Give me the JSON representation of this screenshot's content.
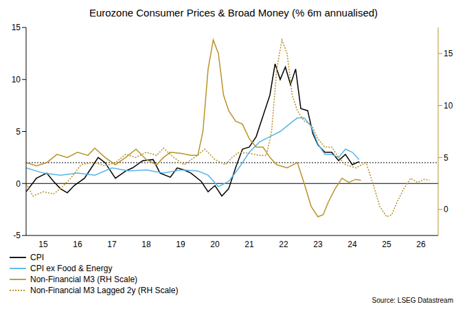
{
  "chart_data": {
    "type": "line",
    "title": "Eurozone Consumer Prices & Broad Money (% 6m annualised)",
    "source": "Source: LSEG Datastream",
    "legend": "bottom-left",
    "grid": false,
    "xlim": [
      2015,
      2027
    ],
    "xticks": [
      {
        "value": 2015.5,
        "label": "15"
      },
      {
        "value": 2016.5,
        "label": "16"
      },
      {
        "value": 2017.5,
        "label": "17"
      },
      {
        "value": 2018.5,
        "label": "18"
      },
      {
        "value": 2019.5,
        "label": "19"
      },
      {
        "value": 2020.5,
        "label": "20"
      },
      {
        "value": 2021.5,
        "label": "21"
      },
      {
        "value": 2022.5,
        "label": "22"
      },
      {
        "value": 2023.5,
        "label": "23"
      },
      {
        "value": 2024.5,
        "label": "24"
      },
      {
        "value": 2025.5,
        "label": "25"
      },
      {
        "value": 2026.5,
        "label": "26"
      }
    ],
    "ylim": [
      -5,
      15
    ],
    "yticks": [
      -5,
      0,
      5,
      10,
      15
    ],
    "y2lim": [
      -2.5,
      17.5
    ],
    "y2ticks": [
      0,
      5,
      10,
      15
    ],
    "reference_lines": [
      {
        "value": 0,
        "line_style": "solid"
      },
      {
        "value": 2,
        "line_style": "dotted"
      }
    ],
    "series": [
      {
        "name": "CPI",
        "color": "#000000",
        "line_style": "solid",
        "x": [
          2015.0,
          2015.3,
          2015.6,
          2015.8,
          2016.0,
          2016.2,
          2016.4,
          2016.7,
          2016.9,
          2017.1,
          2017.3,
          2017.6,
          2017.9,
          2018.1,
          2018.4,
          2018.7,
          2018.9,
          2019.2,
          2019.4,
          2019.6,
          2019.8,
          2020.1,
          2020.3,
          2020.5,
          2020.7,
          2020.9,
          2021.1,
          2021.3,
          2021.5,
          2021.7,
          2021.9,
          2022.1,
          2022.25,
          2022.4,
          2022.55,
          2022.7,
          2022.85,
          2023.0,
          2023.2,
          2023.35,
          2023.5,
          2023.7,
          2023.9,
          2024.1,
          2024.3,
          2024.5,
          2024.7
        ],
        "values": [
          -0.8,
          0.5,
          1.0,
          0.2,
          -0.5,
          -0.9,
          -0.2,
          0.5,
          1.5,
          2.5,
          2.0,
          0.5,
          1.2,
          1.5,
          2.2,
          2.3,
          1.0,
          0.6,
          1.5,
          1.3,
          1.0,
          0.2,
          -0.8,
          -0.2,
          -1.2,
          -0.5,
          1.5,
          3.3,
          3.5,
          4.5,
          6.5,
          8.5,
          11.5,
          10.0,
          11.2,
          9.5,
          11.0,
          7.2,
          7.0,
          4.8,
          3.7,
          3.0,
          3.0,
          2.2,
          2.8,
          1.8,
          2.1
        ]
      },
      {
        "name": "CPI ex Food & Energy",
        "color": "#55b4e8",
        "line_style": "solid",
        "x": [
          2015.0,
          2015.5,
          2016.0,
          2016.5,
          2017.0,
          2017.5,
          2018.0,
          2018.5,
          2019.0,
          2019.5,
          2020.0,
          2020.3,
          2020.6,
          2020.9,
          2021.2,
          2021.5,
          2021.8,
          2022.1,
          2022.4,
          2022.7,
          2022.9,
          2023.1,
          2023.3,
          2023.5,
          2023.7,
          2023.9,
          2024.1,
          2024.3,
          2024.5,
          2024.7
        ],
        "values": [
          1.5,
          1.0,
          0.8,
          1.0,
          0.8,
          1.5,
          1.2,
          1.3,
          1.0,
          1.3,
          1.2,
          0.8,
          -0.3,
          0.2,
          1.5,
          3.0,
          4.0,
          4.5,
          5.0,
          5.8,
          6.3,
          6.3,
          5.5,
          3.8,
          2.8,
          2.8,
          2.5,
          3.3,
          3.0,
          2.3
        ]
      },
      {
        "name": "Non-Financial M3 (RH Scale)",
        "color": "#b8922a",
        "line_style": "solid",
        "axis": "y2",
        "x": [
          2015.0,
          2015.3,
          2015.6,
          2015.9,
          2016.2,
          2016.5,
          2016.8,
          2017.0,
          2017.3,
          2017.6,
          2017.9,
          2018.2,
          2018.5,
          2018.8,
          2019.0,
          2019.2,
          2019.5,
          2019.8,
          2020.0,
          2020.15,
          2020.3,
          2020.45,
          2020.6,
          2020.75,
          2020.9,
          2021.1,
          2021.3,
          2021.5,
          2021.7,
          2021.9,
          2022.1,
          2022.3,
          2022.6,
          2022.9,
          2023.1,
          2023.3,
          2023.5,
          2023.65,
          2023.8,
          2024.0,
          2024.2,
          2024.4,
          2024.6,
          2024.75
        ],
        "values": [
          4.5,
          4.2,
          4.5,
          5.3,
          5.0,
          5.5,
          5.2,
          5.9,
          5.0,
          4.3,
          5.0,
          5.8,
          4.8,
          4.3,
          5.0,
          5.5,
          5.4,
          5.2,
          5.2,
          7.5,
          13.5,
          16.3,
          15.0,
          11.0,
          9.5,
          8.5,
          8.2,
          6.8,
          6.0,
          6.0,
          5.0,
          4.3,
          4.0,
          4.5,
          2.5,
          0.3,
          -0.7,
          -0.5,
          0.7,
          2.0,
          3.0,
          2.6,
          2.9,
          2.8
        ]
      },
      {
        "name": "Non-Financial M3 Lagged 2y (RH Scale)",
        "color": "#b8922a",
        "line_style": "dotted",
        "axis": "y2",
        "x": [
          2015.0,
          2015.2,
          2015.5,
          2015.8,
          2016.0,
          2016.3,
          2016.6,
          2016.9,
          2017.0,
          2017.3,
          2017.6,
          2017.9,
          2018.2,
          2018.5,
          2018.8,
          2019.0,
          2019.3,
          2019.6,
          2019.9,
          2020.2,
          2020.5,
          2020.8,
          2021.0,
          2021.2,
          2021.5,
          2021.8,
          2022.0,
          2022.15,
          2022.3,
          2022.45,
          2022.6,
          2022.75,
          2022.9,
          2023.1,
          2023.3,
          2023.5,
          2023.7,
          2023.9,
          2024.1,
          2024.3,
          2024.6,
          2024.9,
          2025.1,
          2025.3,
          2025.5,
          2025.65,
          2025.8,
          2026.0,
          2026.2,
          2026.4,
          2026.6,
          2026.75
        ],
        "values": [
          2.5,
          1.3,
          1.7,
          1.5,
          2.0,
          3.0,
          4.3,
          4.5,
          4.5,
          4.2,
          4.5,
          5.3,
          5.0,
          5.5,
          5.2,
          5.9,
          5.0,
          4.3,
          5.0,
          5.8,
          4.8,
          4.3,
          5.0,
          5.5,
          5.4,
          5.2,
          5.2,
          7.5,
          13.5,
          16.3,
          15.0,
          11.0,
          9.5,
          8.5,
          8.2,
          6.8,
          6.0,
          6.0,
          5.0,
          4.3,
          4.0,
          4.5,
          2.5,
          0.3,
          -0.7,
          -0.5,
          0.7,
          2.0,
          3.0,
          2.6,
          2.9,
          2.8
        ]
      }
    ]
  }
}
